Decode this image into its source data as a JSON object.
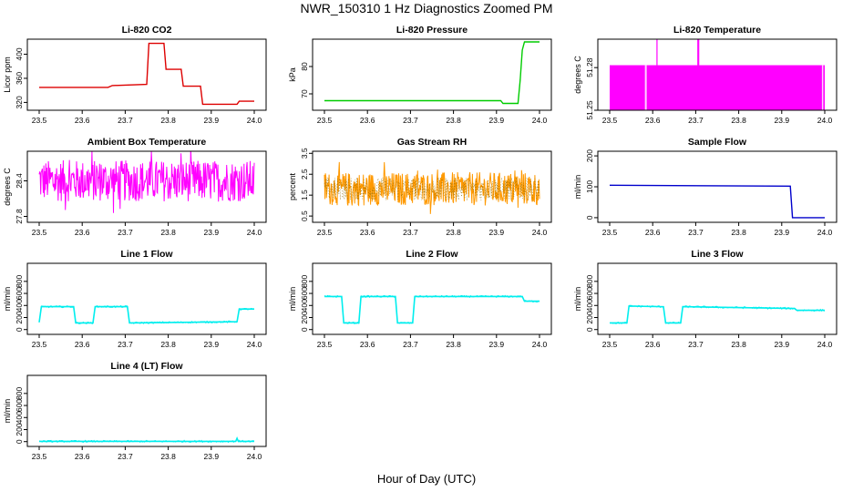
{
  "title": "NWR_150310  1 Hz Diagnostics Zoomed PM",
  "xlabel": "Hour of Day (UTC)",
  "chart_data": [
    {
      "type": "line",
      "title": "Li-820 CO2",
      "ylabel": "Licor ppm",
      "color": "#dd0000",
      "xlim": [
        23.5,
        24.0
      ],
      "ylim": [
        307,
        425
      ],
      "xticks": [
        "23.5",
        "23.6",
        "23.7",
        "23.8",
        "23.9",
        "24.0"
      ],
      "yticks": [
        "320",
        "360",
        "400"
      ],
      "x": [
        23.5,
        23.66,
        23.67,
        23.75,
        23.755,
        23.79,
        23.795,
        23.83,
        23.835,
        23.875,
        23.88,
        23.96,
        23.965,
        24.0
      ],
      "y": [
        345,
        345,
        348,
        350,
        418,
        418,
        375,
        375,
        347,
        347,
        317,
        317,
        322,
        322
      ]
    },
    {
      "type": "line",
      "title": "Li-820 Pressure",
      "ylabel": "kPa",
      "color": "#00cc00",
      "xlim": [
        23.5,
        24.0
      ],
      "ylim": [
        64,
        90
      ],
      "xticks": [
        "23.5",
        "23.6",
        "23.7",
        "23.8",
        "23.9",
        "24.0"
      ],
      "yticks": [
        "70",
        "80"
      ],
      "x": [
        23.5,
        23.91,
        23.915,
        23.95,
        23.955,
        23.96,
        23.965,
        24.0
      ],
      "y": [
        67.5,
        67.5,
        66.5,
        66.5,
        75,
        86,
        89,
        89
      ]
    },
    {
      "type": "band",
      "title": "Li-820 Temperature",
      "ylabel": "degrees C",
      "color": "#ff00ff",
      "xlim": [
        23.5,
        24.0
      ],
      "ylim": [
        51.25,
        51.3
      ],
      "xticks": [
        "23.5",
        "23.6",
        "23.7",
        "23.8",
        "23.9",
        "24.0"
      ],
      "yticks": [
        "51.25",
        "51.28"
      ],
      "band": [
        51.25,
        51.2817
      ],
      "spikes": [
        23.61,
        23.705,
        23.707
      ]
    },
    {
      "type": "noise",
      "title": "Ambient Box Temperature",
      "ylabel": "degrees C",
      "color": "#ff00ff",
      "xlim": [
        23.5,
        24.0
      ],
      "ylim": [
        27.7,
        28.9
      ],
      "xticks": [
        "23.5",
        "23.6",
        "23.7",
        "23.8",
        "23.9",
        "24.0"
      ],
      "yticks": [
        "27.8",
        "28.4"
      ],
      "center": 28.4,
      "spread": 0.35
    },
    {
      "type": "noise",
      "title": "Gas Stream RH",
      "ylabel": "percent",
      "color": "#ff9900",
      "xlim": [
        23.5,
        24.0
      ],
      "ylim": [
        0.2,
        3.6
      ],
      "xticks": [
        "23.5",
        "23.6",
        "23.7",
        "23.8",
        "23.9",
        "24.0"
      ],
      "yticks": [
        "0.5",
        "1.5",
        "2.5",
        "3.5"
      ],
      "center": 1.8,
      "spread": 0.8
    },
    {
      "type": "line",
      "title": "Sample Flow",
      "ylabel": "ml/min",
      "color": "#0000cc",
      "xlim": [
        23.5,
        24.0
      ],
      "ylim": [
        -15,
        215
      ],
      "xticks": [
        "23.5",
        "23.6",
        "23.7",
        "23.8",
        "23.9",
        "24.0"
      ],
      "yticks": [
        "0",
        "100",
        "200"
      ],
      "x": [
        23.5,
        23.92,
        23.925,
        24.0
      ],
      "y": [
        105,
        102,
        0,
        0
      ]
    },
    {
      "type": "line",
      "title": "Line 1 Flow",
      "ylabel": "ml/min",
      "color": "#00eeee",
      "xlim": [
        23.5,
        24.0
      ],
      "ylim": [
        -80,
        1100
      ],
      "xticks": [
        "23.5",
        "23.6",
        "23.7",
        "23.8",
        "23.9",
        "24.0"
      ],
      "yticks": [
        "0",
        "200",
        "400",
        "600",
        "800"
      ],
      "x": [
        23.5,
        23.505,
        23.58,
        23.585,
        23.625,
        23.63,
        23.705,
        23.71,
        23.96,
        23.965,
        24.0
      ],
      "y": [
        120,
        380,
        380,
        110,
        110,
        380,
        380,
        110,
        130,
        340,
        340
      ]
    },
    {
      "type": "line",
      "title": "Line 2 Flow",
      "ylabel": "ml/min",
      "color": "#00eeee",
      "xlim": [
        23.5,
        24.0
      ],
      "ylim": [
        -80,
        1100
      ],
      "xticks": [
        "23.5",
        "23.6",
        "23.7",
        "23.8",
        "23.9",
        "24.0"
      ],
      "yticks": [
        "0",
        "200",
        "400",
        "600",
        "800"
      ],
      "x": [
        23.5,
        23.54,
        23.545,
        23.58,
        23.585,
        23.665,
        23.67,
        23.705,
        23.71,
        23.96,
        23.965,
        24.0
      ],
      "y": [
        550,
        550,
        110,
        110,
        550,
        550,
        110,
        110,
        550,
        550,
        470,
        470
      ]
    },
    {
      "type": "line",
      "title": "Line 3 Flow",
      "ylabel": "ml/min",
      "color": "#00eeee",
      "xlim": [
        23.5,
        24.0
      ],
      "ylim": [
        -80,
        1100
      ],
      "xticks": [
        "23.5",
        "23.6",
        "23.7",
        "23.8",
        "23.9",
        "24.0"
      ],
      "yticks": [
        "0",
        "200",
        "400",
        "600",
        "800"
      ],
      "x": [
        23.5,
        23.505,
        23.54,
        23.545,
        23.625,
        23.63,
        23.665,
        23.67,
        23.93,
        23.935,
        24.0
      ],
      "y": [
        110,
        110,
        110,
        390,
        380,
        110,
        110,
        380,
        350,
        320,
        320
      ]
    },
    {
      "type": "line",
      "title": "Line 4 (LT) Flow",
      "ylabel": "ml/min",
      "color": "#00eeee",
      "xlim": [
        23.5,
        24.0
      ],
      "ylim": [
        -80,
        1100
      ],
      "xticks": [
        "23.5",
        "23.6",
        "23.7",
        "23.8",
        "23.9",
        "24.0"
      ],
      "yticks": [
        "0",
        "200",
        "400",
        "600",
        "800"
      ],
      "x": [
        23.5,
        23.957,
        23.96,
        23.963,
        24.0
      ],
      "y": [
        5,
        5,
        55,
        5,
        5
      ]
    }
  ]
}
